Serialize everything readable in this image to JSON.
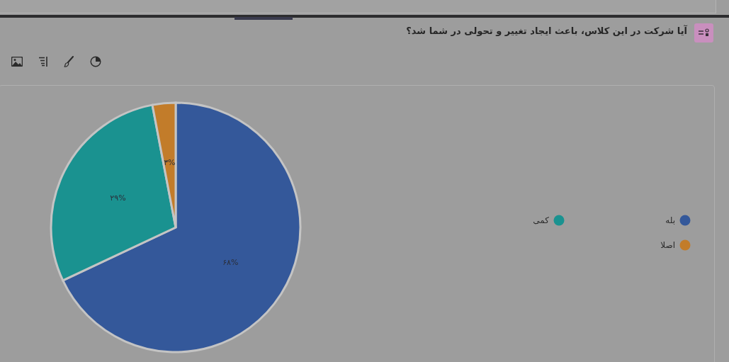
{
  "chart_data": {
    "type": "pie",
    "title": "آیا شرکت در این کلاس، باعث ایجاد تغییر و تحولی در شما شد؟",
    "categories": [
      "بله",
      "کمی",
      "اصلا"
    ],
    "values": [
      68,
      29,
      3
    ],
    "colors": [
      "#34589a",
      "#1a9290",
      "#c27c2a"
    ],
    "value_labels": [
      "۶۸%",
      "۲۹%",
      "۳%"
    ],
    "legend": "right"
  }
}
